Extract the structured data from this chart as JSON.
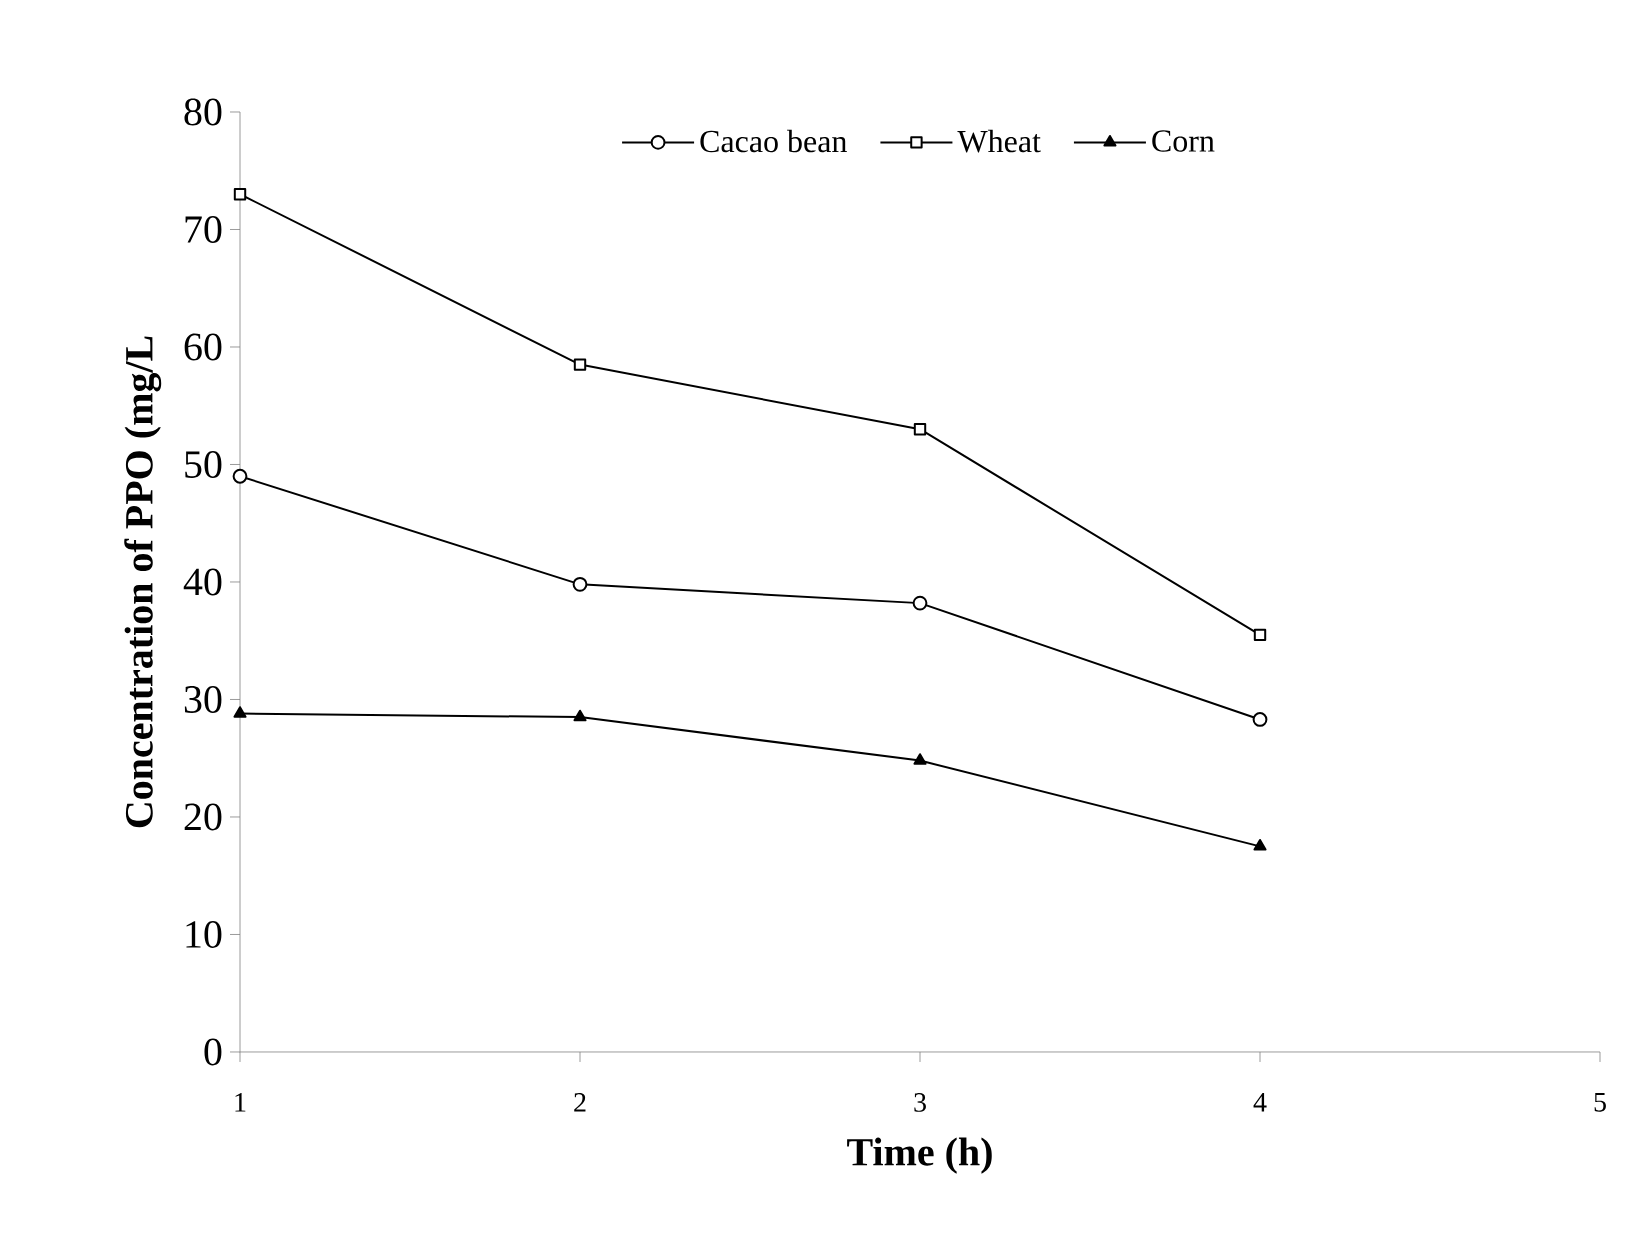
{
  "chart_data": {
    "type": "line",
    "xlabel": "Time (h)",
    "ylabel": "Concentration of PPO (mg/L",
    "x": [
      1,
      2,
      3,
      4
    ],
    "xlim": [
      1,
      5
    ],
    "xticks": [
      1,
      2,
      3,
      4,
      5
    ],
    "ylim": [
      0,
      80
    ],
    "yticks": [
      0,
      10,
      20,
      30,
      40,
      50,
      60,
      70,
      80
    ],
    "legend": "top",
    "grid": false,
    "line_style": "solid",
    "series": [
      {
        "name": "Cacao bean",
        "color": "#000000",
        "marker": "circle",
        "values": [
          49,
          39.8,
          38.2,
          28.3
        ]
      },
      {
        "name": "Wheat",
        "color": "#000000",
        "marker": "square",
        "values": [
          73,
          58.5,
          53,
          35.5
        ]
      },
      {
        "name": "Corn",
        "color": "#000000",
        "marker": "triangle",
        "values": [
          28.8,
          28.5,
          24.8,
          17.5
        ]
      }
    ]
  }
}
